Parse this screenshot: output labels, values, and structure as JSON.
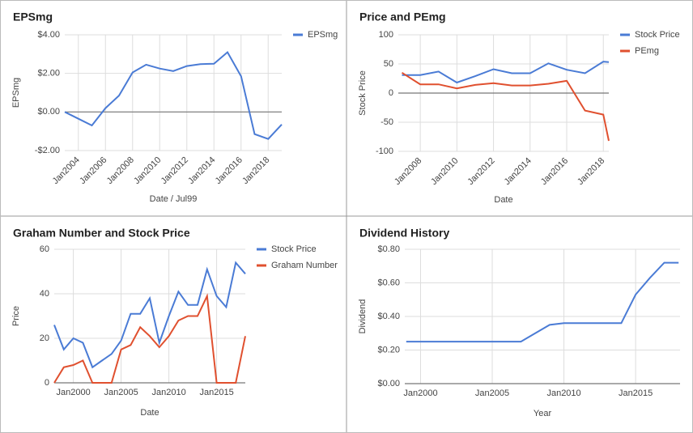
{
  "chart_data": [
    {
      "type": "line",
      "title": "EPSmg",
      "x_label": "Date / Jul99",
      "y_label": "EPSmg",
      "legend": "right",
      "grid": true,
      "rotate_xticks": true,
      "x": [
        2003,
        2004,
        2005,
        2006,
        2007,
        2008,
        2009,
        2010,
        2011,
        2012,
        2013,
        2014,
        2015,
        2016,
        2017,
        2018,
        2019
      ],
      "series": [
        {
          "name": "EPSmg",
          "color": "#4a7bd5",
          "values": [
            0,
            -0.35,
            -0.7,
            0.2,
            0.85,
            2.05,
            2.45,
            2.25,
            2.12,
            2.38,
            2.48,
            2.5,
            3.1,
            1.85,
            -1.15,
            -1.4,
            -0.65
          ]
        }
      ],
      "xlim": [
        2003,
        2019
      ],
      "xticks": [
        {
          "value": 2004,
          "label": "Jan2004"
        },
        {
          "value": 2006,
          "label": "Jan2006"
        },
        {
          "value": 2008,
          "label": "Jan2008"
        },
        {
          "value": 2010,
          "label": "Jan2010"
        },
        {
          "value": 2012,
          "label": "Jan2012"
        },
        {
          "value": 2014,
          "label": "Jan2014"
        },
        {
          "value": 2016,
          "label": "Jan2016"
        },
        {
          "value": 2018,
          "label": "Jan2018"
        }
      ],
      "ylim": [
        -2,
        4
      ],
      "yticks": [
        {
          "value": 4,
          "label": "$4.00"
        },
        {
          "value": 2,
          "label": "$2.00"
        },
        {
          "value": 0,
          "label": "$0.00"
        },
        {
          "value": -2,
          "label": "-$2.00"
        }
      ]
    },
    {
      "type": "line",
      "title": "Price and PEmg",
      "x_label": "Date",
      "y_label": "Stock Price",
      "legend": "right",
      "grid": true,
      "rotate_xticks": true,
      "x": [
        2007,
        2008,
        2009,
        2010,
        2011,
        2012,
        2013,
        2014,
        2015,
        2016,
        2017,
        2018,
        2018.3
      ],
      "series": [
        {
          "name": "Stock Price",
          "color": "#4a7bd5",
          "values": [
            31,
            31,
            37,
            18,
            29,
            41,
            34,
            34,
            51,
            40,
            34,
            54,
            53
          ]
        },
        {
          "name": "PEmg",
          "color": "#e0502f",
          "values": [
            35,
            15,
            15,
            8,
            14,
            17,
            13,
            13,
            16,
            21,
            -30,
            -37,
            -82
          ]
        }
      ],
      "xlim": [
        2006.8,
        2018.3
      ],
      "xticks": [
        {
          "value": 2008,
          "label": "Jan2008"
        },
        {
          "value": 2010,
          "label": "Jan2010"
        },
        {
          "value": 2012,
          "label": "Jan2012"
        },
        {
          "value": 2014,
          "label": "Jan2014"
        },
        {
          "value": 2016,
          "label": "Jan2016"
        },
        {
          "value": 2018,
          "label": "Jan2018"
        }
      ],
      "ylim": [
        -100,
        100
      ],
      "yticks": [
        100,
        50,
        0,
        -50,
        -100
      ]
    },
    {
      "type": "line",
      "title": "Graham Number and Stock Price",
      "x_label": "Date",
      "y_label": "Price",
      "legend": "right",
      "grid": true,
      "rotate_xticks": false,
      "x": [
        1998,
        1999,
        2000,
        2001,
        2002,
        2003,
        2004,
        2005,
        2006,
        2007,
        2008,
        2009,
        2010,
        2011,
        2012,
        2013,
        2014,
        2015,
        2016,
        2017,
        2018
      ],
      "series": [
        {
          "name": "Stock Price",
          "color": "#4a7bd5",
          "values": [
            26,
            15,
            20,
            18,
            7,
            10,
            13,
            19,
            31,
            31,
            38,
            18,
            30,
            41,
            35,
            35,
            51,
            39,
            34,
            54,
            49
          ]
        },
        {
          "name": "Graham Number",
          "color": "#e0502f",
          "values": [
            0,
            7,
            8,
            10,
            0,
            0,
            0,
            15,
            17,
            25,
            21,
            16,
            21,
            28,
            30,
            30,
            39,
            0,
            0,
            0,
            21
          ]
        }
      ],
      "xlim": [
        1998,
        2018
      ],
      "xticks": [
        {
          "value": 2000,
          "label": "Jan2000"
        },
        {
          "value": 2005,
          "label": "Jan2005"
        },
        {
          "value": 2010,
          "label": "Jan2010"
        },
        {
          "value": 2015,
          "label": "Jan2015"
        }
      ],
      "ylim": [
        0,
        60
      ],
      "yticks": [
        0,
        20,
        40,
        60
      ]
    },
    {
      "type": "line",
      "title": "Dividend History",
      "x_label": "Year",
      "y_label": "Dividend",
      "legend": "none",
      "grid": true,
      "rotate_xticks": false,
      "x": [
        1999,
        2000,
        2001,
        2002,
        2003,
        2004,
        2005,
        2006,
        2007,
        2008,
        2009,
        2010,
        2011,
        2012,
        2013,
        2014,
        2015,
        2016,
        2017,
        2018
      ],
      "series": [
        {
          "name": "Dividend",
          "color": "#4a7bd5",
          "values": [
            0.25,
            0.25,
            0.25,
            0.25,
            0.25,
            0.25,
            0.25,
            0.25,
            0.25,
            0.3,
            0.35,
            0.36,
            0.36,
            0.36,
            0.36,
            0.36,
            0.53,
            0.63,
            0.72,
            0.72
          ]
        }
      ],
      "xlim": [
        1998.9,
        2018.1
      ],
      "xticks": [
        {
          "value": 2000,
          "label": "Jan2000"
        },
        {
          "value": 2005,
          "label": "Jan2005"
        },
        {
          "value": 2010,
          "label": "Jan2010"
        },
        {
          "value": 2015,
          "label": "Jan2015"
        }
      ],
      "ylim": [
        0,
        0.8
      ],
      "yticks": [
        {
          "value": 0,
          "label": "$0.00"
        },
        {
          "value": 0.2,
          "label": "$0.20"
        },
        {
          "value": 0.4,
          "label": "$0.40"
        },
        {
          "value": 0.6,
          "label": "$0.60"
        },
        {
          "value": 0.8,
          "label": "$0.80"
        }
      ]
    }
  ]
}
